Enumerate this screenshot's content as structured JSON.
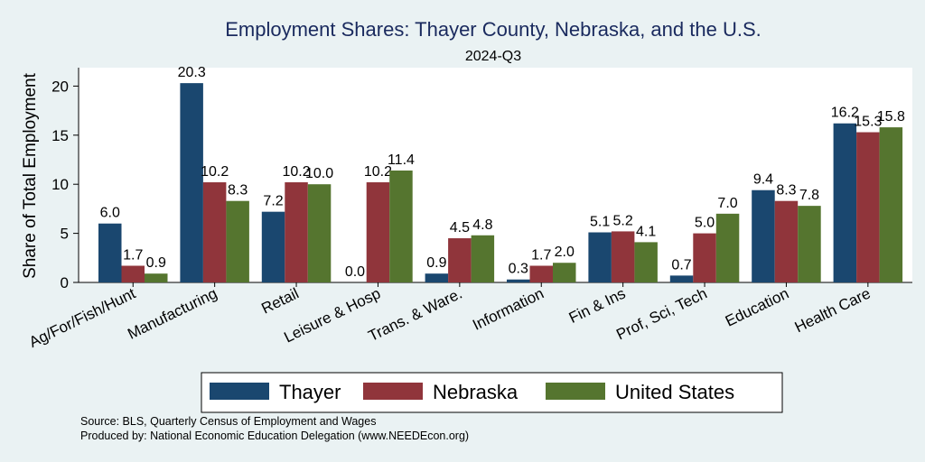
{
  "chart_data": {
    "type": "bar",
    "title": "Employment Shares: Thayer County, Nebraska, and the U.S.",
    "subtitle": "2024-Q3",
    "xlabel": "",
    "ylabel": "Share of Total Employment",
    "ylim": [
      0,
      22
    ],
    "yticks": [
      0,
      5,
      10,
      15,
      20
    ],
    "grid": false,
    "legend_position": "bottom",
    "categories": [
      "Ag/For/Fish/Hunt",
      "Manufacturing",
      "Retail",
      "Leisure & Hosp",
      "Trans. & Ware.",
      "Information",
      "Fin & Ins",
      "Prof, Sci, Tech",
      "Education",
      "Health Care"
    ],
    "series": [
      {
        "name": "Thayer",
        "color": "#1a476f",
        "values": [
          6.0,
          20.3,
          7.2,
          0.0,
          0.9,
          0.3,
          5.1,
          0.7,
          9.4,
          16.2
        ],
        "labels": [
          "6.0",
          "20.3",
          "7.2",
          "0.0",
          "0.9",
          "0.3",
          "5.1",
          "0.7",
          "9.4",
          "16.2"
        ]
      },
      {
        "name": "Nebraska",
        "color": "#90353b",
        "values": [
          1.7,
          10.2,
          10.2,
          10.2,
          4.5,
          1.7,
          5.2,
          5.0,
          8.3,
          15.3
        ],
        "labels": [
          "1.7",
          "10.2",
          "10.2",
          "10.2",
          "4.5",
          "1.7",
          "5.2",
          "5.0",
          "8.3",
          "15.3"
        ]
      },
      {
        "name": "United States",
        "color": "#55752f",
        "values": [
          0.9,
          8.3,
          10.0,
          11.4,
          4.8,
          2.0,
          4.1,
          7.0,
          7.8,
          15.8
        ],
        "labels": [
          "0.9",
          "8.3",
          "10.0",
          "11.4",
          "4.8",
          "2.0",
          "4.1",
          "7.0",
          "7.8",
          "15.8"
        ]
      }
    ],
    "notes": [
      "Source: BLS, Quarterly Census of Employment and Wages",
      "Produced by: National Economic Education Delegation (www.NEEDEcon.org)"
    ]
  }
}
